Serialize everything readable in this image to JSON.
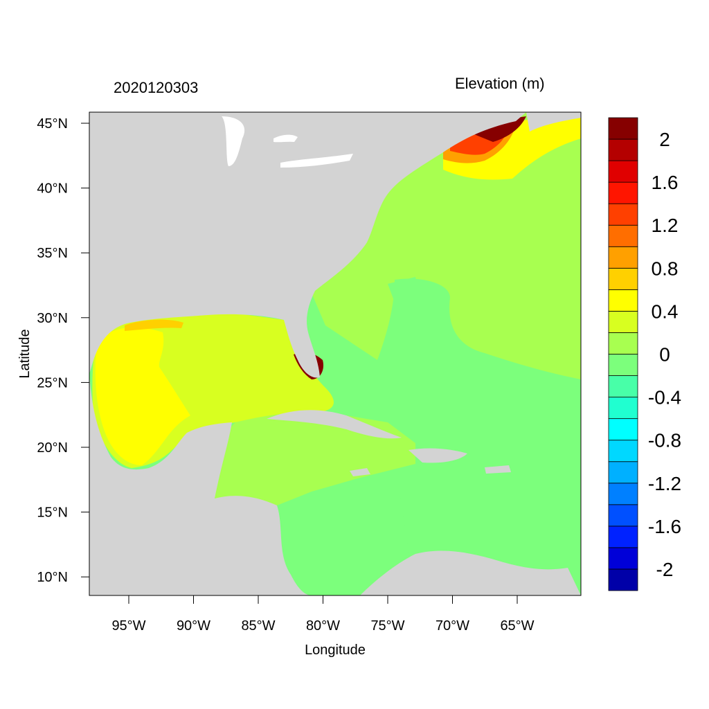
{
  "header": {
    "date_label": "2020120303",
    "variable_label": "Elevation (m)"
  },
  "map": {
    "x_axis_label": "Longitude",
    "y_axis_label": "Latitude",
    "lon_ticks": [
      "95°W",
      "90°W",
      "85°W",
      "80°W",
      "75°W",
      "70°W",
      "65°W"
    ],
    "lat_ticks": [
      "45°N",
      "40°N",
      "35°N",
      "30°N",
      "25°N",
      "20°N",
      "15°N",
      "10°N"
    ],
    "land_color": "#d3d3d3"
  },
  "colorbar": {
    "colors": [
      "#0000a8",
      "#0000d8",
      "#0022ff",
      "#0050ff",
      "#0080ff",
      "#00b0ff",
      "#00d8ff",
      "#00ffff",
      "#20ffd0",
      "#48ffa8",
      "#7cff7c",
      "#a8ff50",
      "#d8ff20",
      "#ffff00",
      "#ffd000",
      "#ffa000",
      "#ff6e00",
      "#ff4000",
      "#ff1500",
      "#e00000",
      "#b40000",
      "#860000"
    ],
    "labels": [
      "-2",
      "-1.6",
      "-1.2",
      "-0.8",
      "-0.4",
      "0",
      "0.4",
      "0.8",
      "1.2",
      "1.6",
      "2"
    ]
  }
}
